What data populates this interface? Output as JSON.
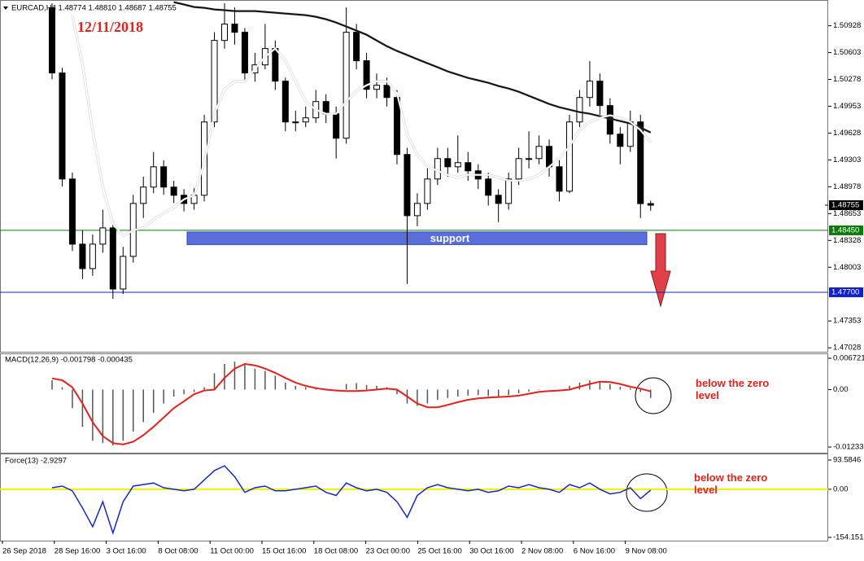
{
  "chart_data": [
    {
      "type": "candlestick",
      "title": "EURCAD,H4  1.48774 1.48810 1.48687 1.48755",
      "date_label": "12/11/2018",
      "ylim": [
        1.4698,
        1.5122
      ],
      "yticks": [
        1.50928,
        1.50603,
        1.50278,
        1.49953,
        1.49628,
        1.49303,
        1.48978,
        1.48653,
        1.48328,
        1.48003,
        1.47353,
        1.47028
      ],
      "open": [
        1.51145,
        1.50356,
        1.49072,
        1.48283,
        1.47987,
        1.48283,
        1.4848,
        1.4774,
        1.48135,
        1.48776,
        1.48974,
        1.4922,
        1.48974,
        1.48875,
        1.48776,
        1.48875,
        1.49763,
        1.5075,
        1.50948,
        1.50849,
        1.50356,
        1.50454,
        1.50652,
        1.50257,
        1.49763,
        1.49763,
        1.49813,
        1.5001,
        1.49862,
        1.49566,
        1.50849,
        1.50504,
        1.50158,
        1.50207,
        1.50059,
        1.49369,
        1.48628,
        1.48776,
        1.49072,
        1.49319,
        1.4922,
        1.4927,
        1.49171,
        1.49072,
        1.48875,
        1.48776,
        1.49072,
        1.49319,
        1.49319,
        1.49467,
        1.4922,
        1.48924,
        1.49763,
        1.50059,
        1.50257,
        1.49961,
        1.49615,
        1.49467,
        1.49763,
        1.48774
      ],
      "high": [
        1.512,
        1.5042,
        1.4915,
        1.4845,
        1.484,
        1.487,
        1.4856,
        1.4825,
        1.4888,
        1.491,
        1.494,
        1.493,
        1.4905,
        1.4895,
        1.4896,
        1.4985,
        1.5085,
        1.512,
        1.5115,
        1.509,
        1.506,
        1.5095,
        1.5075,
        1.503,
        1.499,
        1.4995,
        1.5015,
        1.501,
        1.4995,
        1.5115,
        1.5095,
        1.506,
        1.5035,
        1.503,
        1.5015,
        1.4945,
        1.489,
        1.492,
        1.4945,
        1.4945,
        1.496,
        1.494,
        1.4925,
        1.4915,
        1.4895,
        1.4915,
        1.4945,
        1.4965,
        1.496,
        1.4955,
        1.493,
        1.4985,
        1.5015,
        1.505,
        1.5035,
        1.5005,
        1.497,
        1.499,
        1.4985,
        1.4881
      ],
      "low": [
        1.5028,
        1.4898,
        1.482,
        1.4786,
        1.479,
        1.4818,
        1.4762,
        1.4768,
        1.4806,
        1.486,
        1.489,
        1.4888,
        1.4878,
        1.4868,
        1.487,
        1.488,
        1.497,
        1.5065,
        1.507,
        1.5025,
        1.5025,
        1.504,
        1.5015,
        1.4965,
        1.4965,
        1.497,
        1.4975,
        1.4975,
        1.4932,
        1.495,
        1.504,
        1.5005,
        1.5005,
        1.4995,
        1.4925,
        1.478,
        1.485,
        1.487,
        1.49,
        1.491,
        1.4915,
        1.4905,
        1.4895,
        1.4875,
        1.4855,
        1.487,
        1.49,
        1.492,
        1.4925,
        1.491,
        1.488,
        1.489,
        1.497,
        1.4995,
        1.4985,
        1.495,
        1.4925,
        1.494,
        1.486,
        1.48687
      ],
      "close": [
        1.50356,
        1.49072,
        1.48283,
        1.47987,
        1.48283,
        1.4848,
        1.4774,
        1.48135,
        1.48776,
        1.48974,
        1.4922,
        1.48974,
        1.48875,
        1.48776,
        1.48875,
        1.49763,
        1.5075,
        1.50948,
        1.50849,
        1.50356,
        1.50454,
        1.50652,
        1.50257,
        1.49763,
        1.49763,
        1.49813,
        1.5001,
        1.49862,
        1.49566,
        1.50849,
        1.50504,
        1.50158,
        1.50207,
        1.50059,
        1.49369,
        1.48628,
        1.48776,
        1.49072,
        1.49319,
        1.4922,
        1.4927,
        1.49171,
        1.49072,
        1.48875,
        1.48776,
        1.49072,
        1.49319,
        1.49319,
        1.49467,
        1.4922,
        1.48924,
        1.49763,
        1.50059,
        1.50257,
        1.49961,
        1.49615,
        1.49467,
        1.49763,
        1.48774,
        1.48755
      ],
      "ma_lines": [
        {
          "color": "#111111",
          "values": [
            null,
            null,
            null,
            null,
            null,
            null,
            null,
            null,
            null,
            null,
            null,
            null,
            1.51214,
            1.51185,
            1.51155,
            1.51145,
            1.51125,
            1.51116,
            1.51106,
            1.51106,
            1.51106,
            1.51096,
            1.51086,
            1.51076,
            1.51066,
            1.51056,
            1.51037,
            1.51007,
            1.50967,
            1.50918,
            1.50869,
            1.50819,
            1.5075,
            1.50681,
            1.50622,
            1.50573,
            1.50523,
            1.50474,
            1.50425,
            1.50375,
            1.50336,
            1.50296,
            1.50267,
            1.50237,
            1.50198,
            1.50168,
            1.50128,
            1.50079,
            1.5003,
            1.49981,
            1.49941,
            1.49912,
            1.49882,
            1.49862,
            1.49833,
            1.49803,
            1.49773,
            1.49744,
            1.49694,
            1.49635
          ]
        },
        {
          "color": "#ffffff",
          "values": [
            null,
            null,
            1.51046,
            1.50454,
            1.49665,
            1.48974,
            1.4853,
            1.48382,
            1.48451,
            1.4848,
            1.48579,
            1.48658,
            1.48727,
            1.48826,
            1.48875,
            1.4927,
            1.49862,
            1.50158,
            1.50257,
            1.50257,
            1.50405,
            1.50553,
            1.50652,
            1.50504,
            1.50257,
            1.5001,
            1.49911,
            1.49862,
            1.49862,
            1.5001,
            1.50138,
            1.50207,
            1.50257,
            1.50257,
            1.50109,
            1.49615,
            1.49369,
            1.4922,
            1.49171,
            1.49122,
            1.49092,
            1.49122,
            1.49122,
            1.49122,
            1.49092,
            1.49053,
            1.49053,
            1.49072,
            1.49122,
            1.4922,
            1.49319,
            1.49467,
            1.49665,
            1.49763,
            1.49813,
            1.49842,
            1.49813,
            1.49763,
            1.49665,
            1.49517
          ]
        }
      ],
      "price_lines": [
        {
          "value": 1.4845,
          "label": "1.48450",
          "color": "#0a7a0a"
        },
        {
          "value": 1.477,
          "label": "1.47700",
          "color": "#1020d0"
        }
      ],
      "support_zone": {
        "label": "support",
        "low": 1.48278,
        "high": 1.4843,
        "color": "#5a6fdc"
      }
    },
    {
      "type": "macd",
      "title": "MACD(12,26,9) -0.001798 -0.000435",
      "annotation": "below the zero level",
      "ylim": [
        -0.01356,
        0.0076
      ],
      "yticks": [
        0.006721,
        {
          "value": 0,
          "label": "0.00"
        },
        -0.012337
      ],
      "histogram_color": "#555555",
      "histogram": [
        0.002,
        0.0005,
        -0.004,
        -0.008,
        -0.011,
        -0.0115,
        -0.012,
        -0.011,
        -0.009,
        -0.007,
        -0.005,
        -0.003,
        -0.0015,
        -0.001,
        -0.0005,
        0.0005,
        0.0035,
        0.0055,
        0.006,
        0.0055,
        0.0045,
        0.004,
        0.003,
        0.0015,
        0.0008,
        0.0005,
        0.0005,
        0.0002,
        -0.0002,
        0.0012,
        0.0014,
        0.001,
        0.0008,
        0.0005,
        -0.001,
        -0.003,
        -0.0035,
        -0.003,
        -0.0022,
        -0.0018,
        -0.0015,
        -0.0013,
        -0.0012,
        -0.0014,
        -0.0015,
        -0.0012,
        -0.0008,
        -0.0004,
        -0.0001,
        0,
        -0.0001,
        0.0008,
        0.0015,
        0.002,
        0.0018,
        0.0012,
        0.0006,
        0.0003,
        -0.0005,
        -0.0018
      ],
      "signal_color": "#e8201c",
      "signal": [
        0.0024,
        0.002,
        0.0005,
        -0.003,
        -0.007,
        -0.01,
        -0.0115,
        -0.0118,
        -0.0112,
        -0.0098,
        -0.008,
        -0.006,
        -0.004,
        -0.0025,
        -0.001,
        -0.0002,
        0,
        0.0025,
        0.0045,
        0.0055,
        0.0052,
        0.0045,
        0.0036,
        0.0025,
        0.0015,
        0.0008,
        0.0003,
        0,
        -0.0002,
        -0.0003,
        -0.0003,
        -0.0002,
        0,
        0.0002,
        0,
        -0.0015,
        -0.003,
        -0.0038,
        -0.0038,
        -0.0033,
        -0.0027,
        -0.0022,
        -0.0019,
        -0.0017,
        -0.0016,
        -0.0015,
        -0.0013,
        -0.0009,
        -0.0005,
        -0.0003,
        -0.0002,
        0,
        0.0006,
        0.0012,
        0.0017,
        0.0016,
        0.0012,
        0.0006,
        0.0002,
        -0.0004
      ]
    },
    {
      "type": "line",
      "title": "Force(13) -2.9297",
      "annotation": "below the zero level",
      "ylim": [
        -164.6,
        111.8
      ],
      "yticks": [
        93.5846,
        {
          "value": 0,
          "label": "0.00"
        },
        -154.1513
      ],
      "color": "#1428c8",
      "level_color": "#f0f000",
      "values": [
        5,
        10,
        -5,
        -60,
        -120,
        -40,
        -140,
        -40,
        10,
        15,
        20,
        5,
        0,
        -5,
        0,
        30,
        60,
        75,
        40,
        -10,
        5,
        10,
        -5,
        -5,
        0,
        5,
        10,
        -10,
        -20,
        20,
        5,
        -5,
        0,
        -10,
        -40,
        -90,
        -20,
        5,
        15,
        5,
        0,
        -5,
        0,
        -10,
        -5,
        10,
        5,
        15,
        5,
        0,
        -10,
        15,
        5,
        20,
        0,
        -15,
        -10,
        5,
        -30,
        -2.9297
      ],
      "xlabels": [
        "26 Sep 2018",
        "28 Sep 16:00",
        "3 Oct 16:00",
        "8 Oct 08:00",
        "11 Oct 00:00",
        "15 Oct 16:00",
        "18 Oct 08:00",
        "23 Oct 00:00",
        "25 Oct 16:00",
        "30 Oct 16:00",
        "2 Nov 08:00",
        "6 Nov 16:00",
        "9 Nov 08:00"
      ]
    }
  ]
}
